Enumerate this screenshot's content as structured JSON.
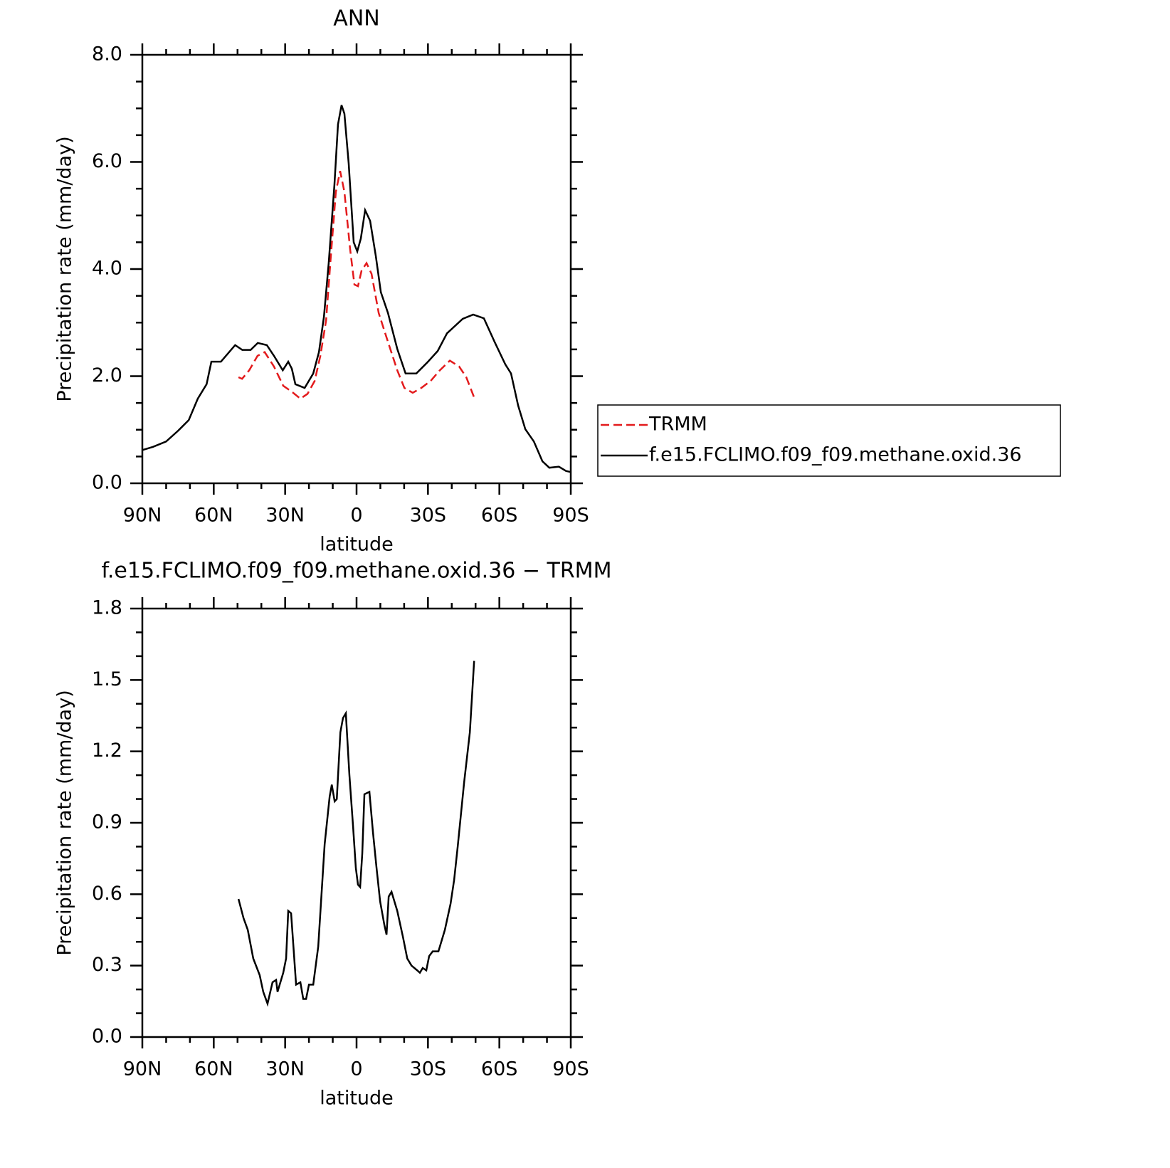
{
  "chart_data": [
    {
      "type": "line",
      "title": "ANN",
      "x_label": "latitude",
      "y_label": "Precipitation rate (mm/day)",
      "xlim": [
        90,
        -90
      ],
      "xticks": [
        {
          "value": 90,
          "label": "90N"
        },
        {
          "value": 60,
          "label": "60N"
        },
        {
          "value": 30,
          "label": "30N"
        },
        0,
        {
          "value": -30,
          "label": "30S"
        },
        {
          "value": -60,
          "label": "60S"
        },
        {
          "value": -90,
          "label": "90S"
        }
      ],
      "xminor": [
        80,
        70,
        50,
        40,
        20,
        10,
        -10,
        -20,
        -40,
        -50,
        -70,
        -80
      ],
      "ylim": [
        0,
        8
      ],
      "yticks": [
        {
          "value": 0,
          "label": "0.0"
        },
        {
          "value": 2,
          "label": "2.0"
        },
        {
          "value": 4,
          "label": "4.0"
        },
        {
          "value": 6,
          "label": "6.0"
        },
        {
          "value": 8,
          "label": "8.0"
        }
      ],
      "yminor": [
        0.5,
        1,
        1.5,
        2.5,
        3,
        3.5,
        4.5,
        5,
        5.5,
        6.5,
        7,
        7.5
      ],
      "legend": "right",
      "series": [
        {
          "name": "TRMM",
          "color": "#e31a1c",
          "dash": true,
          "x": [
            49.6,
            48.1,
            45.1,
            41.6,
            38.6,
            34.7,
            30.8,
            27.2,
            23.6,
            20.6,
            17.6,
            15.2,
            12.8,
            10.8,
            8.7,
            6.9,
            5.1,
            2.7,
            0.9,
            -0.6,
            -2.1,
            -4.2,
            -6.3,
            -9.3,
            -13.2,
            -17.1,
            -20.1,
            -23.6,
            -27.2,
            -31.1,
            -35,
            -39.2,
            -43.1,
            -46.1,
            -49.6
          ],
          "values": [
            1.98,
            1.95,
            2.11,
            2.38,
            2.45,
            2.18,
            1.82,
            1.71,
            1.58,
            1.67,
            1.91,
            2.38,
            3.04,
            4.24,
            5.44,
            5.83,
            5.44,
            4.37,
            3.71,
            3.68,
            3.97,
            4.11,
            3.91,
            3.18,
            2.64,
            2.11,
            1.78,
            1.69,
            1.78,
            1.91,
            2.11,
            2.29,
            2.18,
            1.98,
            1.58
          ]
        },
        {
          "name": "f.e15.FCLIMO.f09_f09.methane.oxid.36",
          "color": "#000000",
          "dash": false,
          "x": [
            90,
            85.5,
            80,
            75,
            70.5,
            66.7,
            63,
            61,
            57,
            51,
            48,
            44.5,
            41.5,
            37.7,
            34.7,
            31,
            28.7,
            27.2,
            25.7,
            21.8,
            18.2,
            15.8,
            13.7,
            11.7,
            9.3,
            7.8,
            6.3,
            5.1,
            3.3,
            1.2,
            -0.3,
            -1.8,
            -3.6,
            -5.7,
            -8.1,
            -10.2,
            -13.2,
            -17.1,
            -20.6,
            -25.1,
            -29.6,
            -34.1,
            -38,
            -44.6,
            -49,
            -53.5,
            -58,
            -62.5,
            -64.9,
            -67.9,
            -70.9,
            -74.5,
            -78.1,
            -81,
            -85,
            -88,
            -90
          ],
          "values": [
            0.62,
            0.68,
            0.78,
            0.98,
            1.18,
            1.58,
            1.85,
            2.27,
            2.27,
            2.58,
            2.49,
            2.49,
            2.62,
            2.58,
            2.38,
            2.11,
            2.27,
            2.14,
            1.85,
            1.78,
            2.05,
            2.45,
            3.11,
            4.11,
            5.57,
            6.7,
            7.06,
            6.9,
            5.97,
            4.5,
            4.33,
            4.57,
            5.1,
            4.9,
            4.24,
            3.57,
            3.18,
            2.51,
            2.05,
            2.05,
            2.25,
            2.47,
            2.8,
            3.07,
            3.15,
            3.08,
            2.64,
            2.22,
            2.05,
            1.45,
            1.01,
            0.78,
            0.41,
            0.29,
            0.31,
            0.23,
            0.21
          ]
        }
      ]
    },
    {
      "type": "line",
      "title": "f.e15.FCLIMO.f09_f09.methane.oxid.36 − TRMM",
      "x_label": "latitude",
      "y_label": "Precipitation rate (mm/day)",
      "xlim": [
        90,
        -90
      ],
      "xticks": [
        {
          "value": 90,
          "label": "90N"
        },
        {
          "value": 60,
          "label": "60N"
        },
        {
          "value": 30,
          "label": "30N"
        },
        0,
        {
          "value": -30,
          "label": "30S"
        },
        {
          "value": -60,
          "label": "60S"
        },
        {
          "value": -90,
          "label": "90S"
        }
      ],
      "xminor": [
        80,
        70,
        50,
        40,
        20,
        10,
        -10,
        -20,
        -40,
        -50,
        -70,
        -80
      ],
      "ylim": [
        0,
        1.8
      ],
      "yticks": [
        {
          "value": 0,
          "label": "0.0"
        },
        {
          "value": 0.3,
          "label": "0.3"
        },
        {
          "value": 0.6,
          "label": "0.6"
        },
        {
          "value": 0.9,
          "label": "0.9"
        },
        {
          "value": 1.2,
          "label": "1.2"
        },
        {
          "value": 1.5,
          "label": "1.5"
        },
        {
          "value": 1.8,
          "label": "1.8"
        }
      ],
      "yminor": [
        0.1,
        0.2,
        0.4,
        0.5,
        0.7,
        0.8,
        1.0,
        1.1,
        1.3,
        1.4,
        1.6,
        1.7
      ],
      "series": [
        {
          "color": "#000000",
          "dash": false,
          "x": [
            49.6,
            47.5,
            45.7,
            43.4,
            40.7,
            39.2,
            37.4,
            35.3,
            33.8,
            33.2,
            30.8,
            29.6,
            28.7,
            27.5,
            25.4,
            23.6,
            22.4,
            21.2,
            20,
            18.2,
            16.1,
            13.4,
            11.3,
            10.4,
            9.2,
            8.3,
            6.8,
            5.7,
            4.5,
            3.0,
            1.5,
            0.3,
            -0.6,
            -1.5,
            -2.4,
            -3.3,
            -5.4,
            -6.9,
            -8.4,
            -9.9,
            -11.7,
            -12.6,
            -13.5,
            -14.7,
            -17.1,
            -19.5,
            -21.3,
            -23.1,
            -25.5,
            -26.6,
            -27.8,
            -29.3,
            -30.5,
            -32,
            -34.4,
            -37.1,
            -39.5,
            -41,
            -42.5,
            -45.2,
            -47.6,
            -49.4
          ],
          "values": [
            0.58,
            0.5,
            0.45,
            0.33,
            0.26,
            0.19,
            0.14,
            0.23,
            0.24,
            0.19,
            0.27,
            0.33,
            0.53,
            0.52,
            0.22,
            0.23,
            0.16,
            0.16,
            0.22,
            0.22,
            0.38,
            0.81,
            1.01,
            1.06,
            0.99,
            1.0,
            1.28,
            1.34,
            1.36,
            1.1,
            0.89,
            0.71,
            0.64,
            0.63,
            0.77,
            1.02,
            1.03,
            0.86,
            0.71,
            0.57,
            0.47,
            0.43,
            0.59,
            0.61,
            0.53,
            0.42,
            0.33,
            0.3,
            0.28,
            0.27,
            0.29,
            0.28,
            0.34,
            0.36,
            0.36,
            0.45,
            0.56,
            0.66,
            0.8,
            1.07,
            1.28,
            1.58
          ]
        }
      ]
    }
  ]
}
